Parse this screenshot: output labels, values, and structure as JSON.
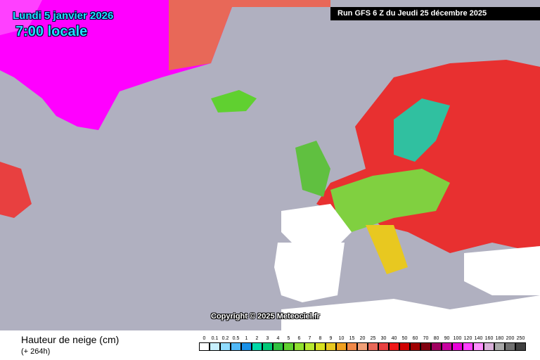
{
  "header": {
    "date": "Lundi 5 janvier 2026",
    "time": "7:00 locale",
    "run": "Run GFS 6 Z du Jeudi 25 décembre 2025"
  },
  "map": {
    "copyright": "Copyright © 2025 Meteociel.fr"
  },
  "legend": {
    "title": "Hauteur de neige (cm)",
    "lead": "(+ 264h)",
    "items": [
      {
        "label": "0",
        "color": "#ffffff"
      },
      {
        "label": "0.1",
        "color": "#c8f0ff"
      },
      {
        "label": "0.2",
        "color": "#90dcff"
      },
      {
        "label": "0.5",
        "color": "#50b8f8"
      },
      {
        "label": "1",
        "color": "#1890e8"
      },
      {
        "label": "2",
        "color": "#00d8a8"
      },
      {
        "label": "3",
        "color": "#00c878"
      },
      {
        "label": "4",
        "color": "#30c040"
      },
      {
        "label": "5",
        "color": "#60d030"
      },
      {
        "label": "6",
        "color": "#90e030"
      },
      {
        "label": "7",
        "color": "#b8e830"
      },
      {
        "label": "8",
        "color": "#d8e020"
      },
      {
        "label": "9",
        "color": "#e8c820"
      },
      {
        "label": "10",
        "color": "#f0a020"
      },
      {
        "label": "15",
        "color": "#f08848"
      },
      {
        "label": "20",
        "color": "#f0a078"
      },
      {
        "label": "25",
        "color": "#e86858"
      },
      {
        "label": "30",
        "color": "#e84040"
      },
      {
        "label": "40",
        "color": "#f01818"
      },
      {
        "label": "50",
        "color": "#d00000"
      },
      {
        "label": "60",
        "color": "#a00000"
      },
      {
        "label": "70",
        "color": "#800010"
      },
      {
        "label": "80",
        "color": "#a00060"
      },
      {
        "label": "90",
        "color": "#c800a0"
      },
      {
        "label": "100",
        "color": "#e800d8"
      },
      {
        "label": "120",
        "color": "#ff40ff"
      },
      {
        "label": "140",
        "color": "#ff90ff"
      },
      {
        "label": "160",
        "color": "#d8b0d8"
      },
      {
        "label": "180",
        "color": "#a8a8a8"
      },
      {
        "label": "200",
        "color": "#707070"
      },
      {
        "label": "250",
        "color": "#404040"
      }
    ]
  }
}
